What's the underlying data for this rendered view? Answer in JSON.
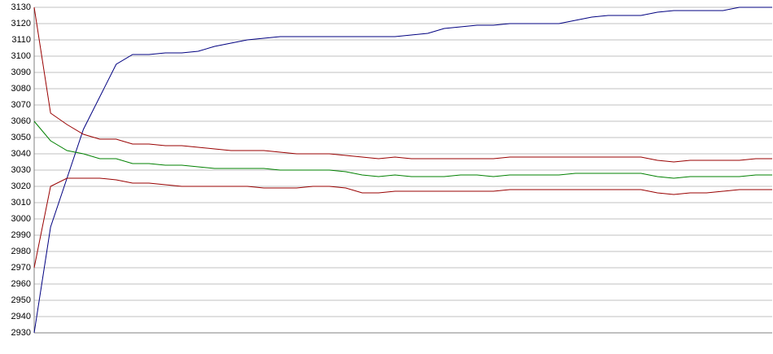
{
  "chart_data": {
    "type": "line",
    "categories": [
      null,
      null,
      null,
      null,
      null,
      null,
      null,
      null,
      null,
      null,
      null,
      null,
      null,
      null,
      null,
      null,
      null,
      null,
      null,
      null,
      null,
      null,
      null,
      null,
      null,
      null,
      null,
      null,
      null,
      null,
      null,
      null,
      null,
      null,
      null,
      null,
      null,
      null,
      null,
      null,
      null,
      null,
      null,
      null,
      null,
      null
    ],
    "series": [
      {
        "color": "#000080",
        "values": [
          2930,
          2995,
          3025,
          3055,
          3075,
          3095,
          3101,
          3101,
          3102,
          3102,
          3103,
          3106,
          3108,
          3110,
          3111,
          3112,
          3112,
          3112,
          3112,
          3112,
          3112,
          3112,
          3112,
          3113,
          3114,
          3117,
          3118,
          3119,
          3119,
          3120,
          3120,
          3120,
          3120,
          3122,
          3124,
          3125,
          3125,
          3125,
          3127,
          3128,
          3128,
          3128,
          3128,
          3130,
          3130,
          3130
        ]
      },
      {
        "color": "#990000",
        "values": [
          3130,
          3065,
          3058,
          3052,
          3049,
          3049,
          3046,
          3046,
          3045,
          3045,
          3044,
          3043,
          3042,
          3042,
          3042,
          3041,
          3040,
          3040,
          3040,
          3039,
          3038,
          3037,
          3038,
          3037,
          3037,
          3037,
          3037,
          3037,
          3037,
          3038,
          3038,
          3038,
          3038,
          3038,
          3038,
          3038,
          3038,
          3038,
          3036,
          3035,
          3036,
          3036,
          3036,
          3036,
          3037,
          3037
        ]
      },
      {
        "color": "#008000",
        "values": [
          3060,
          3048,
          3042,
          3040,
          3037,
          3037,
          3034,
          3034,
          3033,
          3033,
          3032,
          3031,
          3031,
          3031,
          3031,
          3030,
          3030,
          3030,
          3030,
          3029,
          3027,
          3026,
          3027,
          3026,
          3026,
          3026,
          3027,
          3027,
          3026,
          3027,
          3027,
          3027,
          3027,
          3028,
          3028,
          3028,
          3028,
          3028,
          3026,
          3025,
          3026,
          3026,
          3026,
          3026,
          3027,
          3027
        ]
      },
      {
        "color": "#990000",
        "values": [
          2970,
          3020,
          3025,
          3025,
          3025,
          3024,
          3022,
          3022,
          3021,
          3020,
          3020,
          3020,
          3020,
          3020,
          3019,
          3019,
          3019,
          3020,
          3020,
          3019,
          3016,
          3016,
          3017,
          3017,
          3017,
          3017,
          3017,
          3017,
          3017,
          3018,
          3018,
          3018,
          3018,
          3018,
          3018,
          3018,
          3018,
          3018,
          3016,
          3015,
          3016,
          3016,
          3017,
          3018,
          3018,
          3018
        ]
      }
    ],
    "ylim": [
      2930,
      3130
    ],
    "yticks": [
      2930,
      2940,
      2950,
      2960,
      2970,
      2980,
      2990,
      3000,
      3010,
      3020,
      3030,
      3040,
      3050,
      3060,
      3070,
      3080,
      3090,
      3100,
      3110,
      3120,
      3130
    ],
    "grid": true
  }
}
